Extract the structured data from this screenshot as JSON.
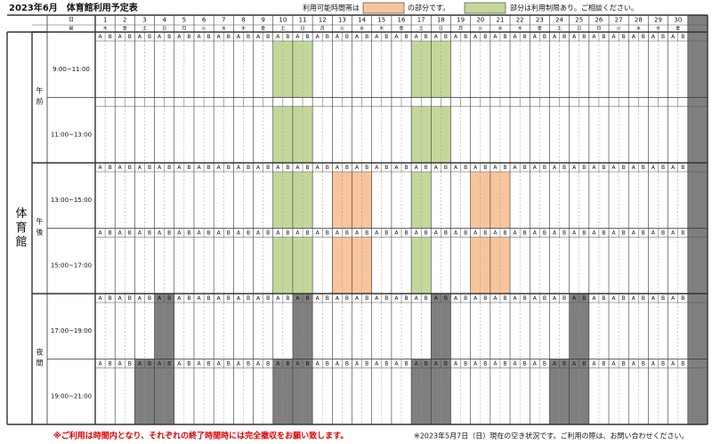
{
  "title": "2023年6月　体育館利用予定表",
  "legend": {
    "prefix": "利用可能時間帯は",
    "available_text": "の部分です。",
    "limited_text": "部分は利用制限あり。ご相談ください。"
  },
  "colors": {
    "available": "#f8c49c",
    "limited": "#c4d79b",
    "closed": "#7f7f7f"
  },
  "header": {
    "day_label": "日",
    "weekday_label": "曜"
  },
  "facility": "体育館",
  "days": [
    1,
    2,
    3,
    4,
    5,
    6,
    7,
    8,
    9,
    10,
    11,
    12,
    13,
    14,
    15,
    16,
    17,
    18,
    19,
    20,
    21,
    22,
    23,
    24,
    25,
    26,
    27,
    28,
    29,
    30
  ],
  "weekdays": [
    "木",
    "金",
    "土",
    "日",
    "月",
    "火",
    "水",
    "木",
    "金",
    "土",
    "日",
    "月",
    "火",
    "水",
    "木",
    "金",
    "土",
    "日",
    "月",
    "火",
    "水",
    "木",
    "金",
    "土",
    "日",
    "月",
    "火",
    "水",
    "木",
    "金"
  ],
  "sub_labels": [
    "A",
    "B"
  ],
  "sections": [
    {
      "name": "午前",
      "slots": [
        {
          "time": "9:00~11:00",
          "show_sub_labels": true,
          "available": [],
          "limited": [
            10,
            11,
            17,
            18
          ],
          "closed": []
        },
        {
          "time": "11:00~13:00",
          "show_sub_labels": false,
          "available": [],
          "limited": [
            10,
            11,
            17,
            18
          ],
          "closed": []
        }
      ]
    },
    {
      "name": "午後",
      "slots": [
        {
          "time": "13:00~15:00",
          "show_sub_labels": true,
          "available": [
            13,
            14,
            20,
            21
          ],
          "limited": [
            10,
            11,
            17
          ],
          "closed": []
        },
        {
          "time": "15:00~17:00",
          "show_sub_labels": true,
          "available": [
            13,
            14,
            20,
            21
          ],
          "limited": [
            10,
            11,
            17
          ],
          "closed": []
        }
      ]
    },
    {
      "name": "夜間",
      "slots": [
        {
          "time": "17:00~19:00",
          "show_sub_labels": true,
          "available": [],
          "limited": [],
          "closed": [
            4,
            11,
            18,
            25
          ]
        },
        {
          "time": "19:00~21:00",
          "show_sub_labels": true,
          "available": [],
          "limited": [],
          "closed": [
            3,
            4,
            10,
            11,
            17,
            18,
            24,
            25
          ]
        }
      ]
    }
  ],
  "notes": [
    "※ご利用は時間内となり、それぞれの終了時間時には完全撤収をお願い致します。",
    "※2023年5月7日（日）現在の空き状況です。ご利用の際は、お問い合わせください。"
  ]
}
